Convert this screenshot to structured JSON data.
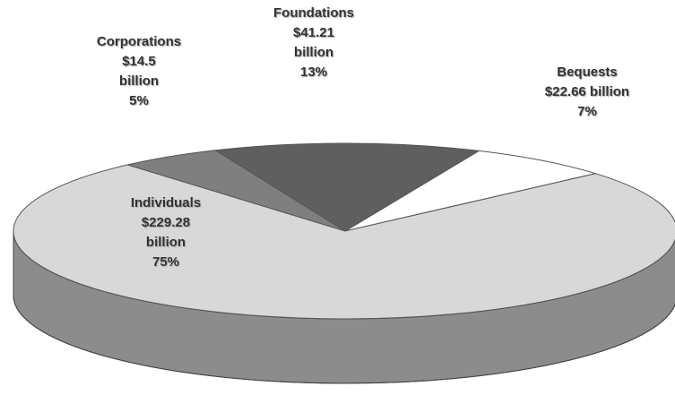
{
  "chart_data": {
    "type": "pie3d",
    "categories": [
      "Bequests",
      "Foundations",
      "Corporations",
      "Individuals"
    ],
    "values": [
      7,
      13,
      5,
      75
    ],
    "value_labels": [
      "7%",
      "13%",
      "5%",
      "75%"
    ],
    "amounts": [
      22.66,
      41.21,
      14.5,
      229.28
    ],
    "amount_labels": [
      "$22.66 billion",
      "$41.21 billion",
      "$14.5 billion",
      "$229.28 billion"
    ],
    "colors": [
      "#ffffff",
      "#5f5f5f",
      "#7f7f7f",
      "#d8d8d8"
    ]
  }
}
